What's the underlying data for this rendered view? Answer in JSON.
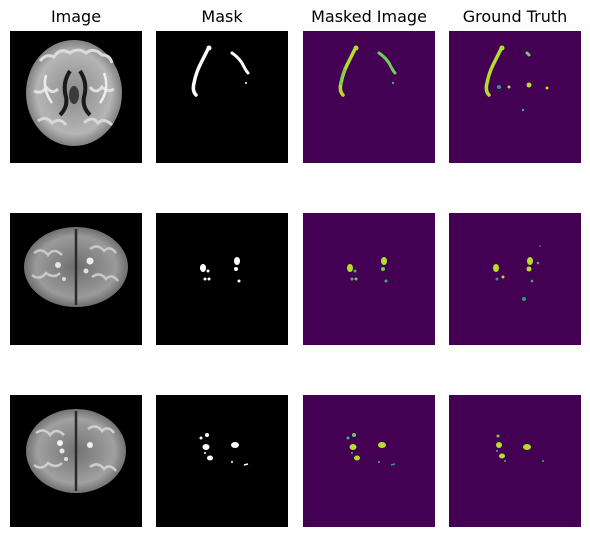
{
  "columns": [
    "Image",
    "Mask",
    "Masked Image",
    "Ground Truth"
  ],
  "colors": {
    "background": "#000000",
    "mask_fg": "#ffffff",
    "masked_bg": "#440154",
    "lesion_yellow": "#b5de2b",
    "lesion_green": "#6ece58",
    "lesion_teal": "#35b779",
    "lesion_cyan": "#1f9e89"
  },
  "rows": [
    {
      "slice": "upper",
      "panels": [
        "mri-scan",
        "binary-mask",
        "masked-overlay",
        "ground-truth-overlay"
      ]
    },
    {
      "slice": "middle",
      "panels": [
        "mri-scan",
        "binary-mask",
        "masked-overlay",
        "ground-truth-overlay"
      ]
    },
    {
      "slice": "lower",
      "panels": [
        "mri-scan",
        "binary-mask",
        "masked-overlay",
        "ground-truth-overlay"
      ]
    }
  ]
}
